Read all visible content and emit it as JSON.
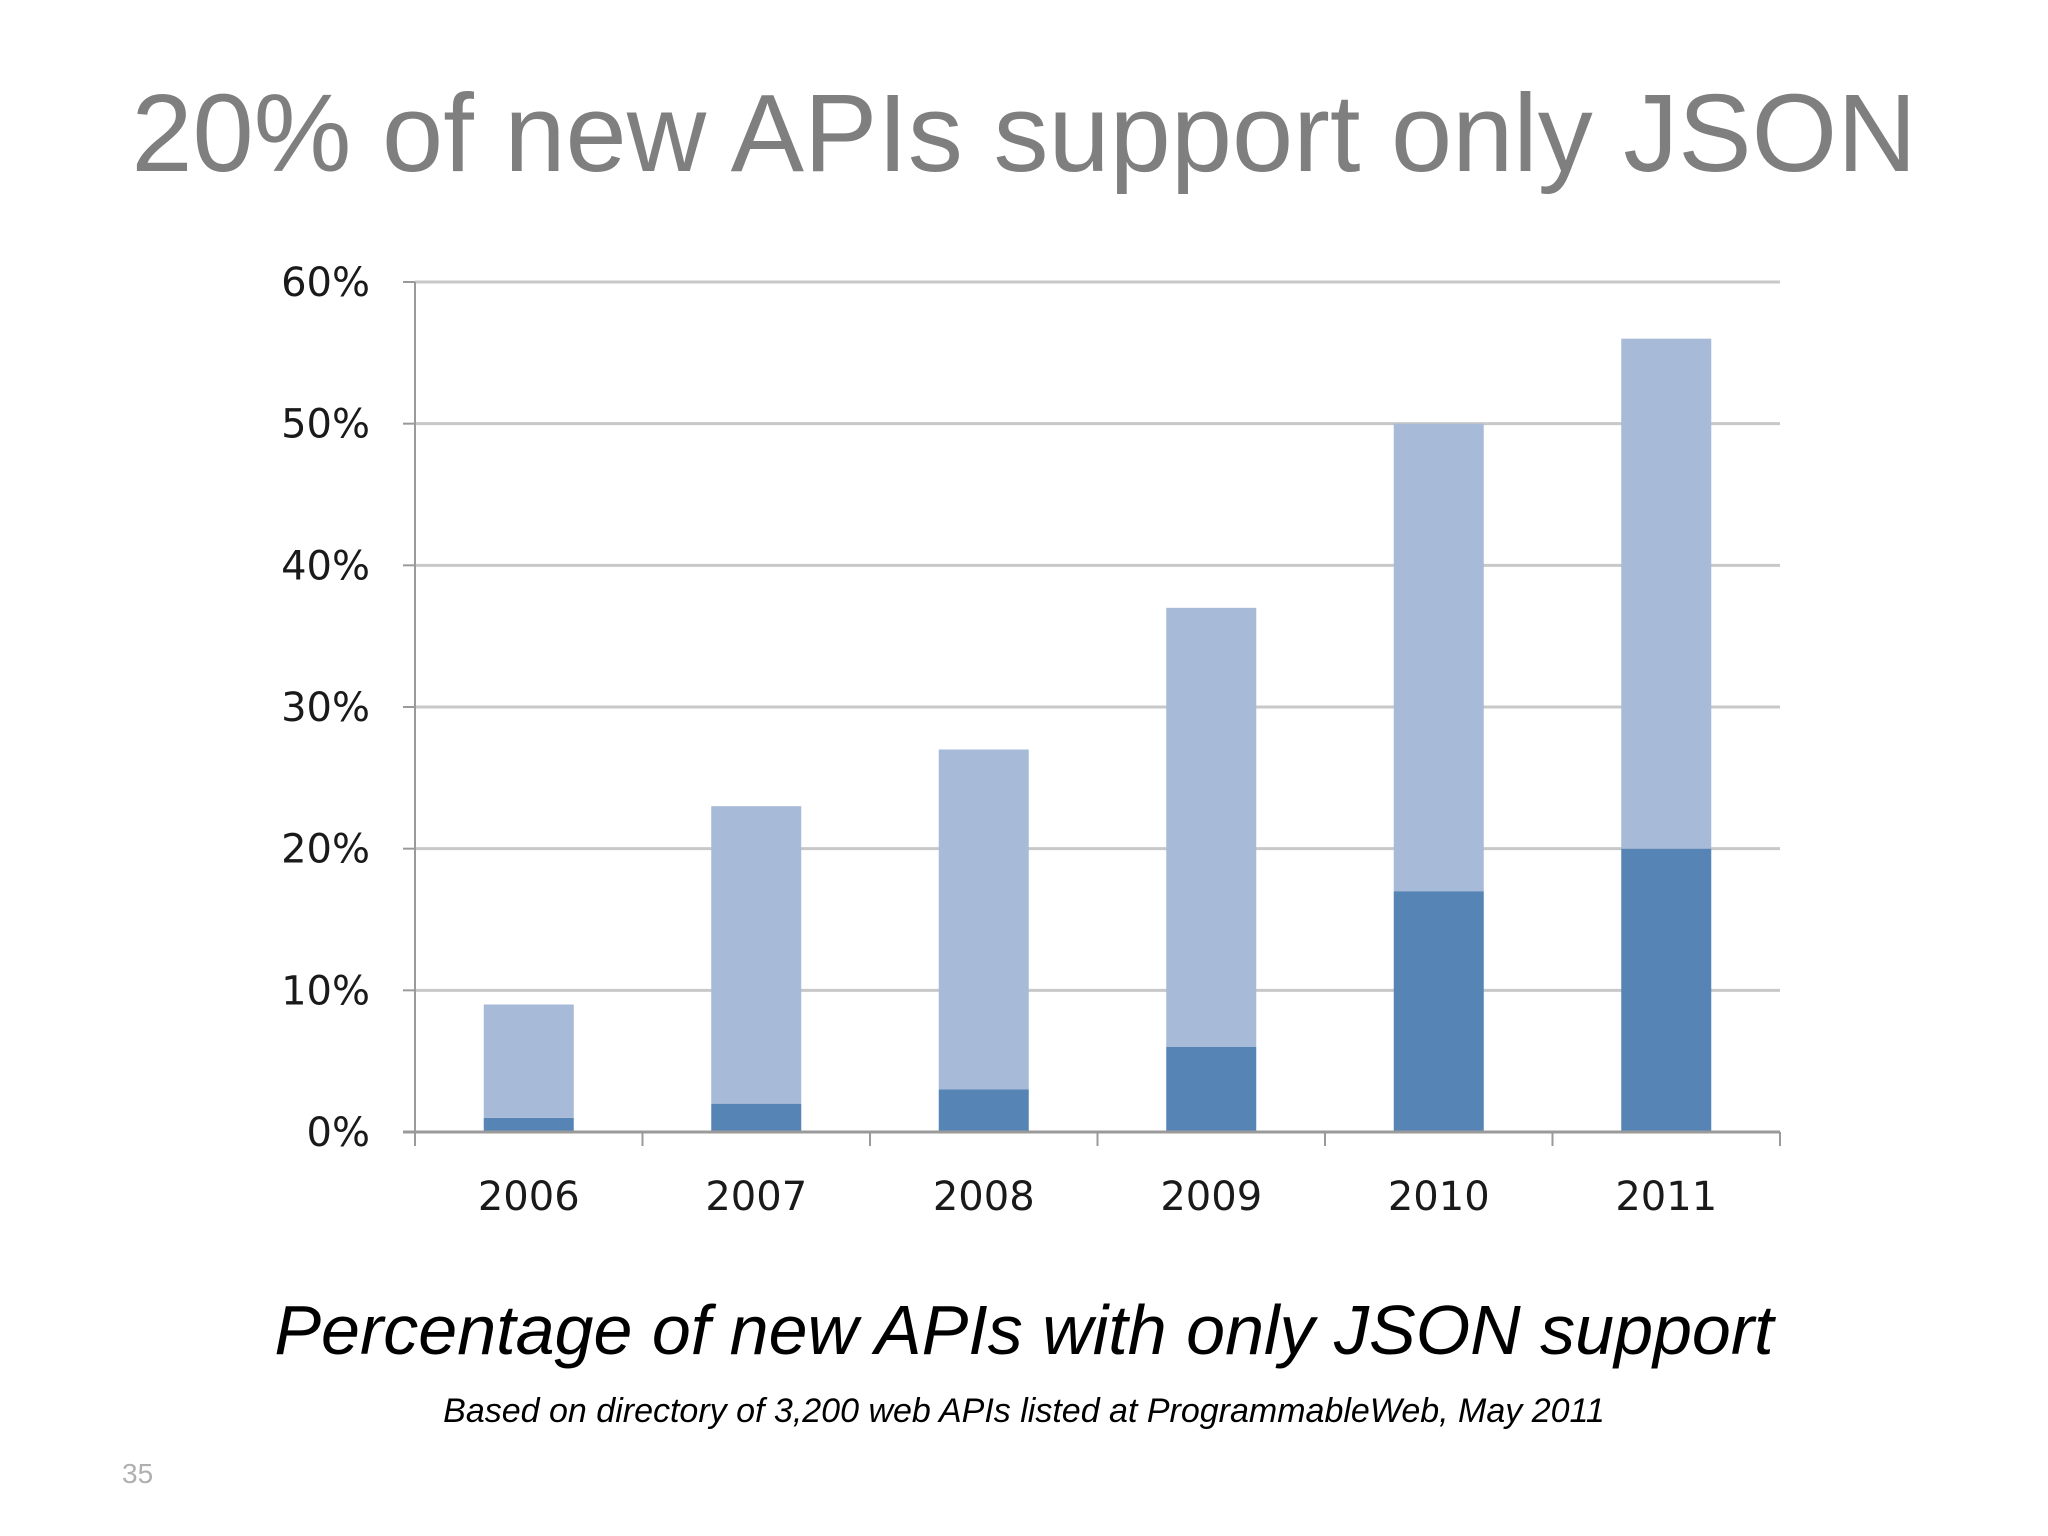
{
  "slide": {
    "title": "20% of new APIs support only JSON",
    "caption": "Percentage of new APIs with only JSON support",
    "source_note": "Based on directory of 3,200 web APIs listed at ProgrammableWeb, May 2011",
    "slide_number": "35"
  },
  "colors": {
    "upper_segment": "#a7bad8",
    "lower_segment": "#5584b5",
    "gridline": "#c8c8c8",
    "axis": "#9a9a9a",
    "title": "#7f7f7f"
  },
  "chart_data": {
    "type": "bar",
    "stacked": true,
    "title": "",
    "xlabel": "",
    "ylabel": "",
    "categories": [
      "2006",
      "2007",
      "2008",
      "2009",
      "2010",
      "2011"
    ],
    "series": [
      {
        "values": [
          1,
          2,
          3,
          6,
          17,
          20
        ]
      },
      {
        "values": [
          8,
          21,
          24,
          31,
          33,
          36
        ]
      }
    ],
    "totals": [
      9,
      23,
      27,
      37,
      50,
      56
    ],
    "ylim": [
      0,
      60
    ],
    "yticks": [
      0,
      10,
      20,
      30,
      40,
      50,
      60
    ],
    "ytick_labels": [
      "0%",
      "10%",
      "20%",
      "30%",
      "40%",
      "50%",
      "60%"
    ],
    "grid": true,
    "legend": "none"
  }
}
